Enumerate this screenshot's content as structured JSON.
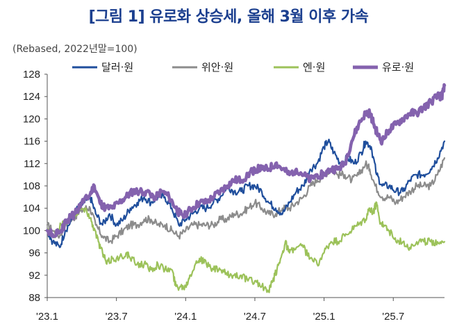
{
  "title": "[그림 1] 유로화 상승세, 올해 3월 이후 가속",
  "unit_note": "(Rebased, 2022년말=100)",
  "colors": {
    "usd": "#1f4e9c",
    "cny": "#8c8c8c",
    "jpy": "#9cc25a",
    "eur": "#8462ae",
    "title": "#1b3f8f"
  },
  "chart_data": {
    "type": "line",
    "title": "[그림 1] 유로화 상승세, 올해 3월 이후 가속",
    "ylabel": "(Rebased, 2022년말=100)",
    "ylim": [
      88,
      128
    ],
    "xlim": [
      2023.0,
      2025.87
    ],
    "grid": false,
    "legend_position": "top",
    "y_ticks": [
      "88",
      "92",
      "96",
      "100",
      "104",
      "108",
      "112",
      "116",
      "120",
      "124",
      "128"
    ],
    "x_ticks": [
      {
        "label": "'23.1",
        "value": 2023.0
      },
      {
        "label": "'23.7",
        "value": 2023.5
      },
      {
        "label": "'24.1",
        "value": 2024.0
      },
      {
        "label": "'24.7",
        "value": 2024.5
      },
      {
        "label": "'25.1",
        "value": 2025.0
      },
      {
        "label": "'25.7",
        "value": 2025.5
      }
    ],
    "series": [
      {
        "name": "달러·원",
        "key": "usd",
        "width": 2.2,
        "points": [
          [
            2023.0,
            100
          ],
          [
            2023.04,
            98
          ],
          [
            2023.09,
            97
          ],
          [
            2023.13,
            100
          ],
          [
            2023.18,
            102
          ],
          [
            2023.22,
            104
          ],
          [
            2023.27,
            105
          ],
          [
            2023.31,
            106
          ],
          [
            2023.35,
            103
          ],
          [
            2023.4,
            101
          ],
          [
            2023.45,
            103
          ],
          [
            2023.5,
            101
          ],
          [
            2023.55,
            102
          ],
          [
            2023.6,
            104
          ],
          [
            2023.65,
            105
          ],
          [
            2023.7,
            106
          ],
          [
            2023.75,
            105
          ],
          [
            2023.8,
            106
          ],
          [
            2023.85,
            106
          ],
          [
            2023.9,
            104
          ],
          [
            2023.95,
            101
          ],
          [
            2024.0,
            102
          ],
          [
            2024.05,
            103
          ],
          [
            2024.1,
            104
          ],
          [
            2024.15,
            104
          ],
          [
            2024.2,
            105
          ],
          [
            2024.25,
            106
          ],
          [
            2024.3,
            108
          ],
          [
            2024.35,
            107
          ],
          [
            2024.4,
            107
          ],
          [
            2024.45,
            108
          ],
          [
            2024.5,
            108
          ],
          [
            2024.55,
            107
          ],
          [
            2024.6,
            105
          ],
          [
            2024.65,
            104
          ],
          [
            2024.7,
            103
          ],
          [
            2024.75,
            105
          ],
          [
            2024.8,
            107
          ],
          [
            2024.85,
            108
          ],
          [
            2024.9,
            111
          ],
          [
            2024.95,
            112
          ],
          [
            2025.0,
            115
          ],
          [
            2025.03,
            116
          ],
          [
            2025.07,
            114
          ],
          [
            2025.12,
            112
          ],
          [
            2025.17,
            113
          ],
          [
            2025.22,
            112
          ],
          [
            2025.27,
            114
          ],
          [
            2025.3,
            116
          ],
          [
            2025.34,
            115
          ],
          [
            2025.38,
            110
          ],
          [
            2025.42,
            108
          ],
          [
            2025.47,
            108
          ],
          [
            2025.52,
            107
          ],
          [
            2025.57,
            107
          ],
          [
            2025.62,
            109
          ],
          [
            2025.67,
            110
          ],
          [
            2025.72,
            110
          ],
          [
            2025.77,
            111
          ],
          [
            2025.82,
            113
          ],
          [
            2025.87,
            116
          ]
        ]
      },
      {
        "name": "위안·원",
        "key": "cny",
        "width": 2.2,
        "points": [
          [
            2023.0,
            101
          ],
          [
            2023.04,
            100
          ],
          [
            2023.09,
            99
          ],
          [
            2023.13,
            101
          ],
          [
            2023.18,
            102
          ],
          [
            2023.22,
            103
          ],
          [
            2023.27,
            104
          ],
          [
            2023.31,
            104
          ],
          [
            2023.35,
            101
          ],
          [
            2023.4,
            99
          ],
          [
            2023.45,
            98
          ],
          [
            2023.5,
            99
          ],
          [
            2023.55,
            100
          ],
          [
            2023.6,
            101
          ],
          [
            2023.65,
            101
          ],
          [
            2023.7,
            102
          ],
          [
            2023.75,
            102
          ],
          [
            2023.8,
            101
          ],
          [
            2023.85,
            101
          ],
          [
            2023.9,
            100
          ],
          [
            2023.95,
            99
          ],
          [
            2024.0,
            100
          ],
          [
            2024.05,
            101
          ],
          [
            2024.1,
            101
          ],
          [
            2024.15,
            101
          ],
          [
            2024.2,
            101
          ],
          [
            2024.25,
            102
          ],
          [
            2024.3,
            102
          ],
          [
            2024.35,
            103
          ],
          [
            2024.4,
            103
          ],
          [
            2024.45,
            104
          ],
          [
            2024.5,
            105
          ],
          [
            2024.55,
            104
          ],
          [
            2024.6,
            103
          ],
          [
            2024.65,
            103
          ],
          [
            2024.7,
            104
          ],
          [
            2024.75,
            104
          ],
          [
            2024.8,
            105
          ],
          [
            2024.85,
            106
          ],
          [
            2024.9,
            108
          ],
          [
            2024.95,
            109
          ],
          [
            2025.0,
            110
          ],
          [
            2025.05,
            111
          ],
          [
            2025.1,
            110
          ],
          [
            2025.15,
            110
          ],
          [
            2025.2,
            109
          ],
          [
            2025.25,
            110
          ],
          [
            2025.3,
            112
          ],
          [
            2025.33,
            111
          ],
          [
            2025.37,
            108
          ],
          [
            2025.42,
            106
          ],
          [
            2025.47,
            106
          ],
          [
            2025.52,
            105
          ],
          [
            2025.57,
            106
          ],
          [
            2025.62,
            107
          ],
          [
            2025.67,
            108
          ],
          [
            2025.72,
            108
          ],
          [
            2025.77,
            108
          ],
          [
            2025.82,
            110
          ],
          [
            2025.87,
            113
          ]
        ]
      },
      {
        "name": "엔·원",
        "key": "jpy",
        "width": 2.2,
        "points": [
          [
            2023.0,
            100
          ],
          [
            2023.05,
            99
          ],
          [
            2023.1,
            101
          ],
          [
            2023.15,
            102
          ],
          [
            2023.2,
            103
          ],
          [
            2023.25,
            104
          ],
          [
            2023.3,
            103
          ],
          [
            2023.33,
            101
          ],
          [
            2023.37,
            98
          ],
          [
            2023.4,
            96
          ],
          [
            2023.43,
            94
          ],
          [
            2023.47,
            95
          ],
          [
            2023.52,
            95
          ],
          [
            2023.57,
            96
          ],
          [
            2023.6,
            95
          ],
          [
            2023.65,
            94
          ],
          [
            2023.7,
            94
          ],
          [
            2023.75,
            93
          ],
          [
            2023.8,
            94
          ],
          [
            2023.85,
            93
          ],
          [
            2023.9,
            93
          ],
          [
            2023.93,
            90
          ],
          [
            2023.96,
            90
          ],
          [
            2024.0,
            90
          ],
          [
            2024.03,
            92
          ],
          [
            2024.07,
            94
          ],
          [
            2024.1,
            95
          ],
          [
            2024.15,
            94
          ],
          [
            2024.2,
            93
          ],
          [
            2024.25,
            93
          ],
          [
            2024.3,
            92
          ],
          [
            2024.35,
            92
          ],
          [
            2024.4,
            92
          ],
          [
            2024.45,
            91
          ],
          [
            2024.5,
            91
          ],
          [
            2024.55,
            90
          ],
          [
            2024.6,
            89
          ],
          [
            2024.63,
            91
          ],
          [
            2024.66,
            93
          ],
          [
            2024.7,
            96
          ],
          [
            2024.72,
            98
          ],
          [
            2024.75,
            96
          ],
          [
            2024.8,
            97
          ],
          [
            2024.85,
            97
          ],
          [
            2024.9,
            95
          ],
          [
            2024.95,
            94
          ],
          [
            2025.0,
            96
          ],
          [
            2025.05,
            98
          ],
          [
            2025.1,
            98
          ],
          [
            2025.15,
            99
          ],
          [
            2025.2,
            100
          ],
          [
            2025.25,
            101
          ],
          [
            2025.3,
            102
          ],
          [
            2025.33,
            104
          ],
          [
            2025.35,
            103
          ],
          [
            2025.38,
            105
          ],
          [
            2025.4,
            102
          ],
          [
            2025.43,
            101
          ],
          [
            2025.47,
            100
          ],
          [
            2025.52,
            98
          ],
          [
            2025.57,
            98
          ],
          [
            2025.62,
            97
          ],
          [
            2025.67,
            98
          ],
          [
            2025.72,
            98
          ],
          [
            2025.77,
            98
          ],
          [
            2025.82,
            98
          ],
          [
            2025.87,
            98
          ]
        ]
      },
      {
        "name": "유로·원",
        "key": "eur",
        "width": 4.5,
        "points": [
          [
            2023.0,
            100
          ],
          [
            2023.05,
            99
          ],
          [
            2023.1,
            100
          ],
          [
            2023.15,
            102
          ],
          [
            2023.2,
            103
          ],
          [
            2023.25,
            105
          ],
          [
            2023.3,
            106
          ],
          [
            2023.34,
            108
          ],
          [
            2023.38,
            105
          ],
          [
            2023.42,
            104
          ],
          [
            2023.47,
            104
          ],
          [
            2023.52,
            105
          ],
          [
            2023.57,
            106
          ],
          [
            2023.62,
            107
          ],
          [
            2023.67,
            107
          ],
          [
            2023.72,
            107
          ],
          [
            2023.78,
            106
          ],
          [
            2023.83,
            107
          ],
          [
            2023.88,
            106
          ],
          [
            2023.93,
            104
          ],
          [
            2023.96,
            103
          ],
          [
            2024.0,
            103
          ],
          [
            2024.05,
            104
          ],
          [
            2024.1,
            105
          ],
          [
            2024.15,
            105
          ],
          [
            2024.2,
            106
          ],
          [
            2024.25,
            107
          ],
          [
            2024.3,
            108
          ],
          [
            2024.35,
            109
          ],
          [
            2024.4,
            109
          ],
          [
            2024.45,
            110
          ],
          [
            2024.5,
            111
          ],
          [
            2024.55,
            111
          ],
          [
            2024.6,
            111
          ],
          [
            2024.65,
            112
          ],
          [
            2024.7,
            111
          ],
          [
            2024.75,
            110
          ],
          [
            2024.8,
            111
          ],
          [
            2024.85,
            110
          ],
          [
            2024.9,
            109
          ],
          [
            2024.95,
            110
          ],
          [
            2025.0,
            110
          ],
          [
            2025.05,
            111
          ],
          [
            2025.1,
            111
          ],
          [
            2025.15,
            112
          ],
          [
            2025.2,
            116
          ],
          [
            2025.25,
            119
          ],
          [
            2025.3,
            121
          ],
          [
            2025.33,
            121
          ],
          [
            2025.36,
            119
          ],
          [
            2025.39,
            117
          ],
          [
            2025.42,
            116
          ],
          [
            2025.47,
            118
          ],
          [
            2025.52,
            119
          ],
          [
            2025.57,
            120
          ],
          [
            2025.62,
            121
          ],
          [
            2025.67,
            121
          ],
          [
            2025.72,
            122
          ],
          [
            2025.77,
            123
          ],
          [
            2025.82,
            124
          ],
          [
            2025.85,
            124
          ],
          [
            2025.87,
            126
          ]
        ]
      }
    ]
  }
}
